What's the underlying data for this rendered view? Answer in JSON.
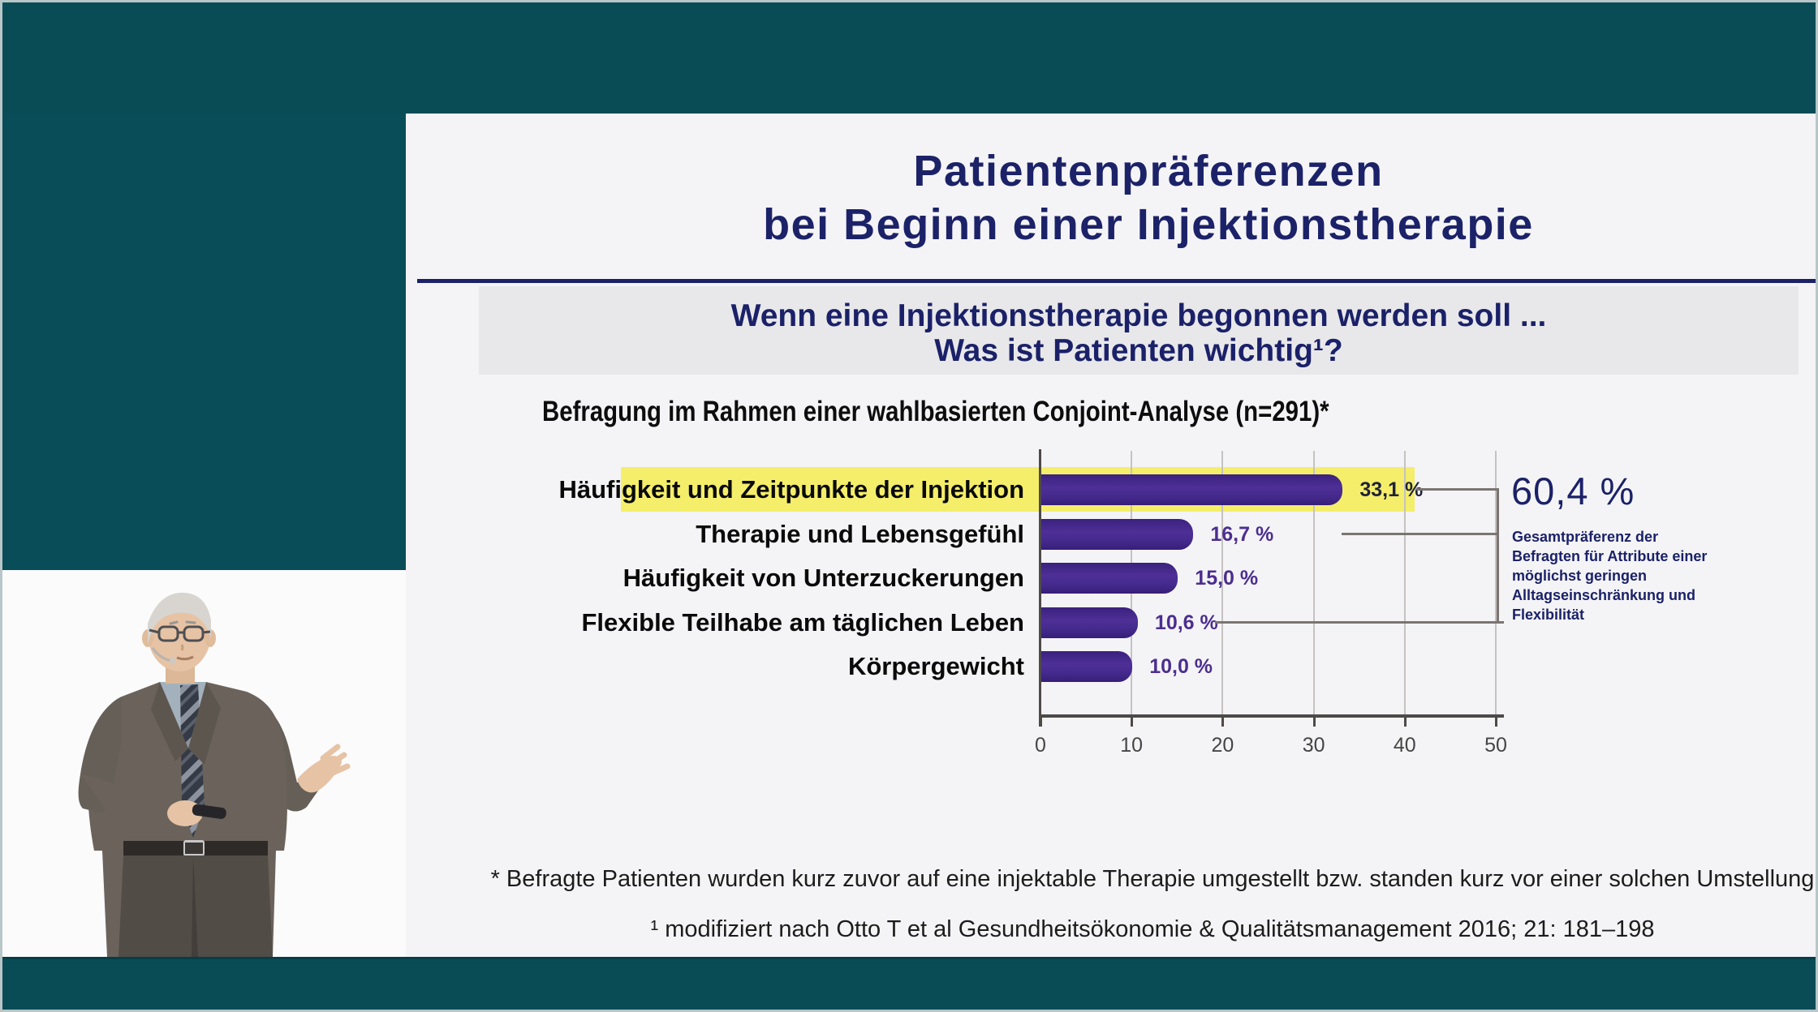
{
  "slide": {
    "title_line1": "Patientenpräferenzen",
    "title_line2": "bei Beginn einer Injektionstherapie",
    "question_line1": "Wenn eine Injektionstherapie begonnen werden soll ...",
    "question_line2": "Was ist Patienten wichtig¹?",
    "survey_note": "Befragung im Rahmen einer wahlbasierten Conjoint-Analyse (n=291)*",
    "footnote_star": "* Befragte Patienten wurden kurz zuvor auf eine injektable Therapie umgestellt bzw. standen kurz vor einer solchen Umstellung",
    "footnote_ref": "¹ modifiziert nach Otto T et al Gesundheitsökonomie & Qualitätsmanagement 2016; 21: 181–198"
  },
  "chart_data": {
    "type": "bar",
    "orientation": "horizontal",
    "categories": [
      "Häufigkeit und Zeitpunkte der Injektion",
      "Therapie und Lebensgefühl",
      "Häufigkeit von Unterzuckerungen",
      "Flexible Teilhabe am täglichen Leben",
      "Körpergewicht"
    ],
    "values": [
      33.1,
      16.7,
      15.0,
      10.6,
      10.0
    ],
    "value_labels": [
      "33,1 %",
      "16,7 %",
      "15,0 %",
      "10,6 %",
      "10,0 %"
    ],
    "highlighted_index": 0,
    "xlim": [
      0,
      50
    ],
    "xticks": [
      "0",
      "10",
      "20",
      "30",
      "40",
      "50"
    ],
    "grid": true,
    "legend": "none",
    "annotation": {
      "value": "60,4 %",
      "description": "Gesamtpräferenz der\nBefragten für Attribute einer\nmöglichst geringen\nAlltagseinschränkung und\nFlexibilität",
      "bracket_rows": [
        0,
        1,
        3
      ]
    }
  },
  "colors": {
    "teal_background": "#0a4c56",
    "slide_background": "#f4f4f6",
    "title_navy": "#1c2268",
    "bar_purple": "#46278e",
    "highlight_yellow": "#f4ee6b",
    "bracket_gray": "#7b7572"
  }
}
